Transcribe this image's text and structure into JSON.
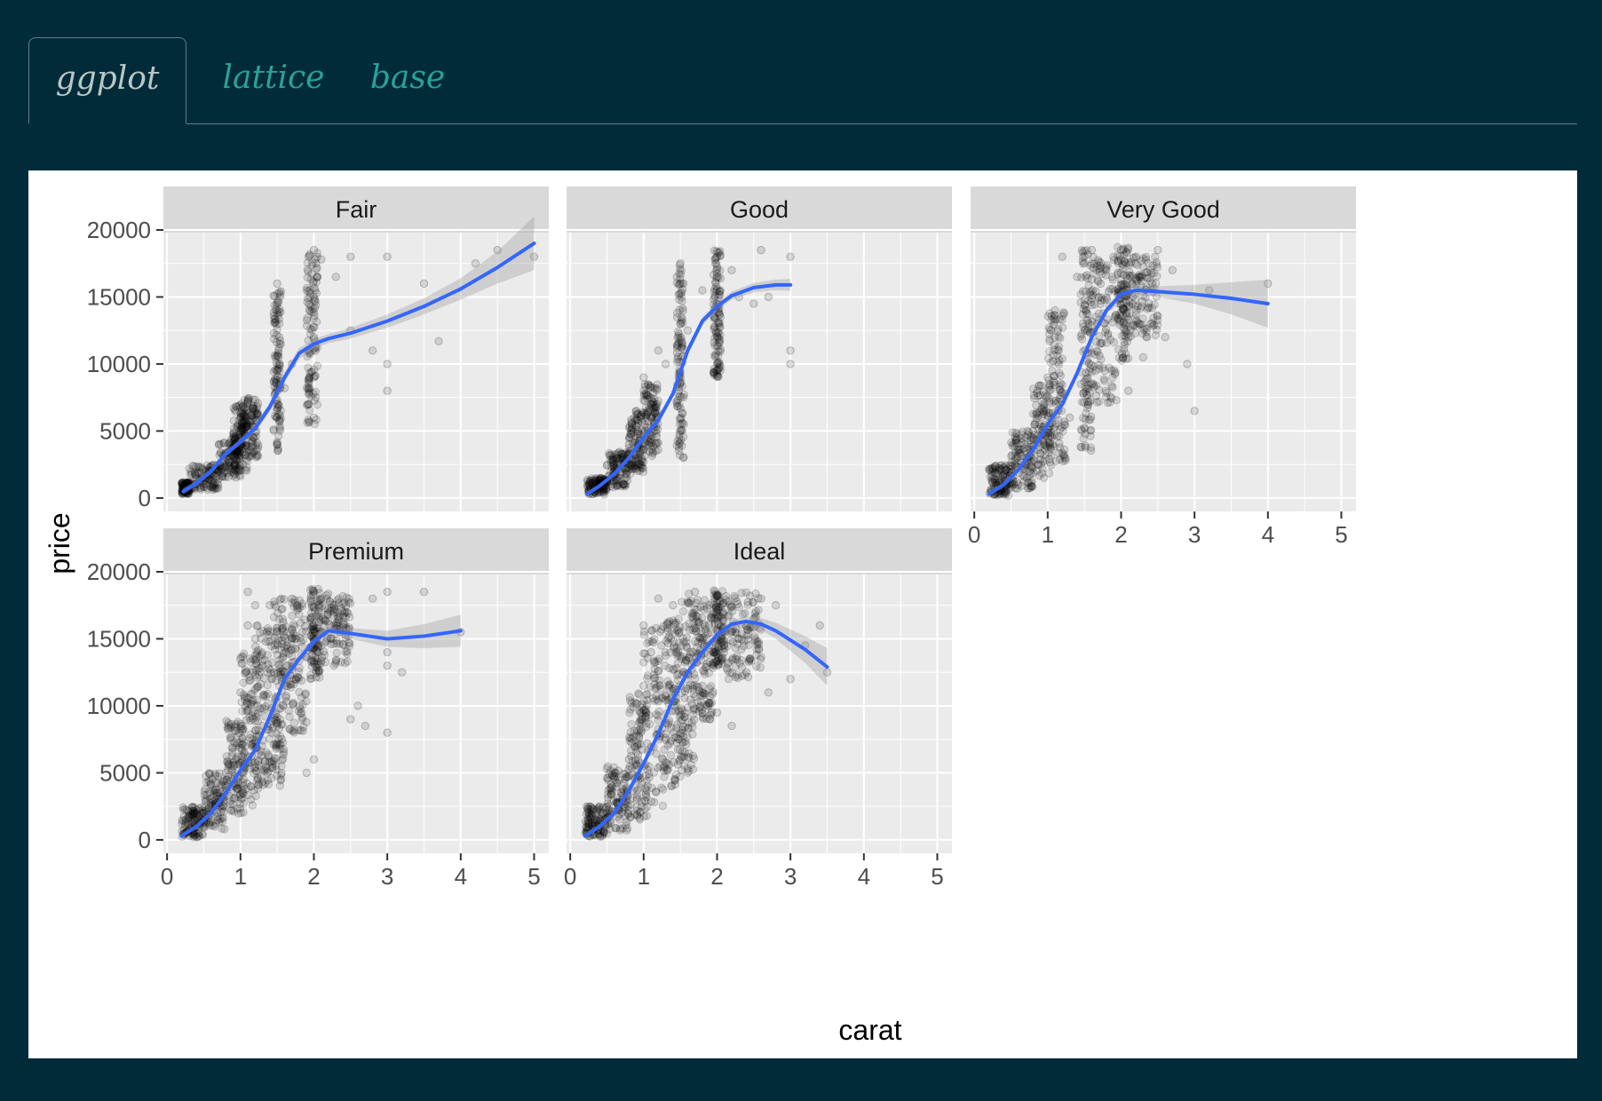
{
  "tabs": [
    {
      "label": "ggplot",
      "active": true
    },
    {
      "label": "lattice",
      "active": false
    },
    {
      "label": "base",
      "active": false
    }
  ],
  "colors": {
    "page_bg": "#012b39",
    "tab_text": "#2aa198",
    "tab_active_text": "#b9c7c7",
    "panel_bg": "#ebebeb",
    "strip_bg": "#d9d9d9",
    "smooth_line": "#3366ff",
    "ribbon": "#999999"
  },
  "chart_data": {
    "type": "scatter",
    "title": "",
    "xlabel": "carat",
    "ylabel": "price",
    "xlim": [
      -0.05,
      5.2
    ],
    "ylim": [
      -1000,
      19800
    ],
    "x_ticks": [
      0,
      1,
      2,
      3,
      4,
      5
    ],
    "x_tick_labels": [
      "0",
      "1",
      "2",
      "3",
      "4",
      "5"
    ],
    "y_ticks": [
      0,
      5000,
      10000,
      15000,
      20000
    ],
    "y_tick_labels": [
      "0",
      "5000",
      "10000",
      "15000",
      "20000"
    ],
    "grid": true,
    "facets": [
      {
        "label": "Fair",
        "smooth": {
          "x": [
            0.22,
            0.4,
            0.6,
            0.8,
            1.0,
            1.2,
            1.4,
            1.6,
            1.8,
            2.0,
            2.2,
            2.5,
            3.0,
            3.5,
            4.0,
            4.5,
            5.0
          ],
          "y": [
            500,
            1100,
            2000,
            3300,
            4200,
            5200,
            6800,
            9000,
            10800,
            11500,
            11900,
            12300,
            13200,
            14300,
            15600,
            17200,
            19000
          ],
          "se": [
            250,
            200,
            200,
            220,
            250,
            300,
            350,
            400,
            400,
            350,
            350,
            400,
            500,
            600,
            800,
            1200,
            2000
          ]
        },
        "points": [
          [
            0.3,
            700
          ],
          [
            0.5,
            1200
          ],
          [
            0.7,
            2000
          ],
          [
            0.9,
            3500
          ],
          [
            1.0,
            4500
          ],
          [
            1.0,
            6000
          ],
          [
            1.05,
            5200
          ],
          [
            1.2,
            6500
          ],
          [
            1.5,
            4000
          ],
          [
            1.5,
            7000
          ],
          [
            1.5,
            9500
          ],
          [
            1.5,
            14000
          ],
          [
            1.5,
            16000
          ],
          [
            1.6,
            8200
          ],
          [
            1.7,
            10000
          ],
          [
            2.0,
            6000
          ],
          [
            2.0,
            9000
          ],
          [
            2.0,
            12000
          ],
          [
            2.0,
            15000
          ],
          [
            2.0,
            18500
          ],
          [
            2.1,
            17800
          ],
          [
            2.3,
            16500
          ],
          [
            2.5,
            18000
          ],
          [
            2.5,
            12500
          ],
          [
            2.8,
            11000
          ],
          [
            3.0,
            18000
          ],
          [
            3.0,
            10000
          ],
          [
            3.0,
            8000
          ],
          [
            3.5,
            16000
          ],
          [
            3.7,
            11700
          ],
          [
            4.2,
            17500
          ],
          [
            4.5,
            18500
          ],
          [
            5.0,
            18000
          ]
        ],
        "dense": [
          [
            0.2,
            0.3,
            300,
            1200
          ],
          [
            0.3,
            0.7,
            600,
            2500
          ],
          [
            0.7,
            1.0,
            1500,
            4500
          ],
          [
            0.9,
            1.1,
            2000,
            7000
          ],
          [
            1.0,
            1.25,
            3000,
            7500
          ],
          [
            1.45,
            1.55,
            3500,
            15500
          ],
          [
            1.9,
            2.05,
            5500,
            18500
          ]
        ]
      },
      {
        "label": "Good",
        "smooth": {
          "x": [
            0.23,
            0.4,
            0.6,
            0.8,
            1.0,
            1.2,
            1.4,
            1.6,
            1.8,
            2.0,
            2.2,
            2.5,
            2.8,
            3.0
          ],
          "y": [
            300,
            900,
            1800,
            3000,
            4500,
            5800,
            7800,
            11000,
            13200,
            14300,
            15100,
            15700,
            15900,
            15900
          ],
          "se": [
            200,
            150,
            150,
            150,
            200,
            220,
            250,
            300,
            300,
            300,
            300,
            350,
            400,
            450
          ]
        },
        "points": [
          [
            0.4,
            900
          ],
          [
            0.6,
            2200
          ],
          [
            0.8,
            4000
          ],
          [
            0.9,
            6500
          ],
          [
            1.0,
            9000
          ],
          [
            1.1,
            7000
          ],
          [
            1.2,
            11000
          ],
          [
            1.3,
            10000
          ],
          [
            1.5,
            13000
          ],
          [
            1.5,
            16000
          ],
          [
            1.5,
            17500
          ],
          [
            1.6,
            12500
          ],
          [
            1.8,
            15500
          ],
          [
            2.0,
            18000
          ],
          [
            2.0,
            16500
          ],
          [
            2.0,
            12000
          ],
          [
            2.0,
            9500
          ],
          [
            2.2,
            17000
          ],
          [
            2.3,
            15000
          ],
          [
            2.5,
            14500
          ],
          [
            2.6,
            18500
          ],
          [
            3.0,
            18000
          ],
          [
            3.0,
            11000
          ],
          [
            3.0,
            10000
          ],
          [
            2.7,
            15000
          ]
        ],
        "dense": [
          [
            0.23,
            0.5,
            250,
            1500
          ],
          [
            0.5,
            0.8,
            800,
            3500
          ],
          [
            0.8,
            1.0,
            1800,
            6500
          ],
          [
            1.0,
            1.2,
            3000,
            8500
          ],
          [
            1.45,
            1.55,
            3000,
            17500
          ],
          [
            1.95,
            2.05,
            9000,
            18500
          ]
        ]
      },
      {
        "label": "Very Good",
        "smooth": {
          "x": [
            0.2,
            0.4,
            0.6,
            0.8,
            1.0,
            1.2,
            1.4,
            1.6,
            1.8,
            2.0,
            2.2,
            2.5,
            3.0,
            3.5,
            4.0
          ],
          "y": [
            300,
            1000,
            2100,
            3600,
            5500,
            7000,
            9300,
            12000,
            14000,
            15200,
            15500,
            15400,
            15200,
            14900,
            14500
          ],
          "se": [
            200,
            150,
            150,
            150,
            180,
            200,
            220,
            250,
            250,
            300,
            300,
            400,
            700,
            1200,
            1800
          ]
        },
        "points": [
          [
            0.5,
            1800
          ],
          [
            0.8,
            5000
          ],
          [
            1.0,
            9000
          ],
          [
            1.1,
            14000
          ],
          [
            1.2,
            18000
          ],
          [
            1.4,
            16500
          ],
          [
            1.6,
            18500
          ],
          [
            1.8,
            17000
          ],
          [
            2.0,
            18500
          ],
          [
            2.2,
            17500
          ],
          [
            2.4,
            13000
          ],
          [
            2.6,
            12000
          ],
          [
            2.7,
            17000
          ],
          [
            2.9,
            10000
          ],
          [
            3.0,
            6500
          ],
          [
            3.2,
            15500
          ],
          [
            4.0,
            16000
          ],
          [
            2.5,
            18500
          ],
          [
            1.3,
            6000
          ],
          [
            2.1,
            8000
          ],
          [
            2.3,
            10500
          ]
        ],
        "dense": [
          [
            0.2,
            0.5,
            200,
            2500
          ],
          [
            0.5,
            0.8,
            700,
            5000
          ],
          [
            0.8,
            1.05,
            1500,
            8500
          ],
          [
            1.0,
            1.25,
            2500,
            14000
          ],
          [
            1.45,
            1.6,
            3500,
            18500
          ],
          [
            1.6,
            1.95,
            7000,
            18000
          ],
          [
            1.95,
            2.1,
            10000,
            18800
          ],
          [
            2.1,
            2.5,
            12000,
            18000
          ]
        ]
      },
      {
        "label": "Premium",
        "smooth": {
          "x": [
            0.2,
            0.4,
            0.6,
            0.8,
            1.0,
            1.2,
            1.4,
            1.6,
            1.8,
            2.0,
            2.2,
            2.5,
            3.0,
            3.5,
            4.0
          ],
          "y": [
            300,
            1000,
            2000,
            3500,
            5200,
            6700,
            9200,
            12000,
            13500,
            14800,
            15600,
            15400,
            15000,
            15200,
            15600
          ],
          "se": [
            200,
            150,
            150,
            150,
            180,
            200,
            220,
            250,
            250,
            300,
            300,
            400,
            600,
            900,
            1200
          ]
        },
        "points": [
          [
            0.5,
            2000
          ],
          [
            0.8,
            5000
          ],
          [
            1.0,
            11000
          ],
          [
            1.0,
            13500
          ],
          [
            1.1,
            16000
          ],
          [
            1.2,
            17500
          ],
          [
            1.3,
            13000
          ],
          [
            1.4,
            17500
          ],
          [
            1.7,
            18000
          ],
          [
            1.9,
            5000
          ],
          [
            2.0,
            6000
          ],
          [
            2.5,
            9000
          ],
          [
            2.6,
            10000
          ],
          [
            2.7,
            8500
          ],
          [
            2.8,
            18000
          ],
          [
            3.0,
            18500
          ],
          [
            3.0,
            14000
          ],
          [
            3.0,
            8000
          ],
          [
            3.5,
            18500
          ],
          [
            4.0,
            15500
          ],
          [
            1.1,
            18500
          ],
          [
            1.2,
            15000
          ],
          [
            3.2,
            12500
          ],
          [
            3.0,
            13000
          ],
          [
            2.3,
            16000
          ]
        ],
        "dense": [
          [
            0.2,
            0.5,
            200,
            2500
          ],
          [
            0.5,
            0.8,
            800,
            5000
          ],
          [
            0.8,
            1.05,
            1800,
            9000
          ],
          [
            1.0,
            1.25,
            2500,
            14000
          ],
          [
            1.2,
            1.45,
            4000,
            16000
          ],
          [
            1.45,
            1.6,
            4000,
            18500
          ],
          [
            1.6,
            1.9,
            8000,
            18000
          ],
          [
            1.95,
            2.1,
            12000,
            18800
          ],
          [
            2.1,
            2.5,
            13000,
            18500
          ]
        ]
      },
      {
        "label": "Ideal",
        "smooth": {
          "x": [
            0.2,
            0.4,
            0.6,
            0.8,
            1.0,
            1.2,
            1.4,
            1.6,
            1.8,
            2.0,
            2.2,
            2.4,
            2.6,
            2.8,
            3.0,
            3.2,
            3.5
          ],
          "y": [
            300,
            1000,
            2000,
            3700,
            5700,
            7900,
            10500,
            12500,
            14000,
            15300,
            16100,
            16300,
            16100,
            15600,
            14900,
            14200,
            12900
          ],
          "se": [
            200,
            150,
            150,
            150,
            180,
            200,
            220,
            250,
            250,
            280,
            300,
            350,
            450,
            600,
            800,
            1000,
            1400
          ]
        },
        "points": [
          [
            0.5,
            2500
          ],
          [
            0.8,
            6000
          ],
          [
            1.0,
            11500
          ],
          [
            1.0,
            16000
          ],
          [
            1.1,
            14000
          ],
          [
            1.2,
            18000
          ],
          [
            1.4,
            17500
          ],
          [
            1.7,
            18500
          ],
          [
            1.9,
            9000
          ],
          [
            2.0,
            9500
          ],
          [
            2.2,
            8500
          ],
          [
            2.4,
            12500
          ],
          [
            2.6,
            18000
          ],
          [
            2.7,
            11000
          ],
          [
            2.8,
            17500
          ],
          [
            3.0,
            12000
          ],
          [
            3.2,
            14500
          ],
          [
            3.4,
            16000
          ],
          [
            3.5,
            12500
          ],
          [
            2.3,
            15000
          ],
          [
            2.5,
            16500
          ]
        ],
        "dense": [
          [
            0.2,
            0.5,
            200,
            2500
          ],
          [
            0.5,
            0.8,
            700,
            5500
          ],
          [
            0.8,
            1.05,
            1500,
            11000
          ],
          [
            1.0,
            1.3,
            2500,
            16000
          ],
          [
            1.3,
            1.5,
            4000,
            16500
          ],
          [
            1.5,
            1.7,
            5000,
            18500
          ],
          [
            1.7,
            1.95,
            9000,
            18000
          ],
          [
            1.95,
            2.1,
            13000,
            18800
          ],
          [
            2.1,
            2.6,
            12000,
            18500
          ]
        ]
      }
    ]
  }
}
